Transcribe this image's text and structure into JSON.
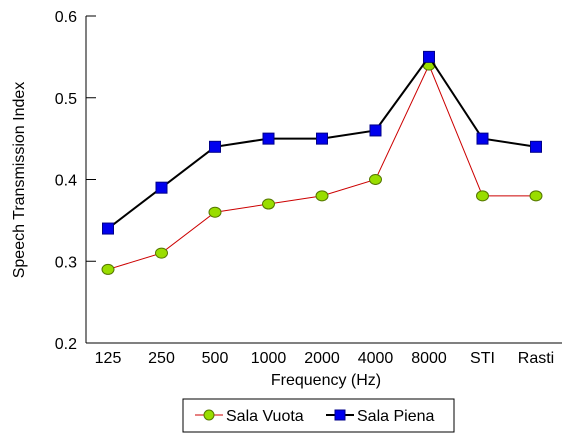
{
  "chart_data": {
    "type": "line",
    "xlabel": "Frequency (Hz)",
    "ylabel": "Speech Transmission Index",
    "categories": [
      "125",
      "250",
      "500",
      "1000",
      "2000",
      "4000",
      "8000",
      "STI",
      "Rasti"
    ],
    "ylim": [
      0.2,
      0.6
    ],
    "yticks": [
      "0.2",
      "0.3",
      "0.4",
      "0.5",
      "0.6"
    ],
    "grid": false,
    "legend_position": "bottom",
    "series": [
      {
        "name": "Sala Vuota",
        "values": [
          0.29,
          0.31,
          0.36,
          0.37,
          0.38,
          0.4,
          0.54,
          0.38,
          0.38
        ],
        "line_color": "#cc0000",
        "marker": "circle",
        "marker_color": "#99dd00"
      },
      {
        "name": "Sala Piena",
        "values": [
          0.34,
          0.39,
          0.44,
          0.45,
          0.45,
          0.46,
          0.55,
          0.45,
          0.44
        ],
        "line_color": "#000000",
        "marker": "square",
        "marker_color": "#0000ee"
      }
    ]
  }
}
